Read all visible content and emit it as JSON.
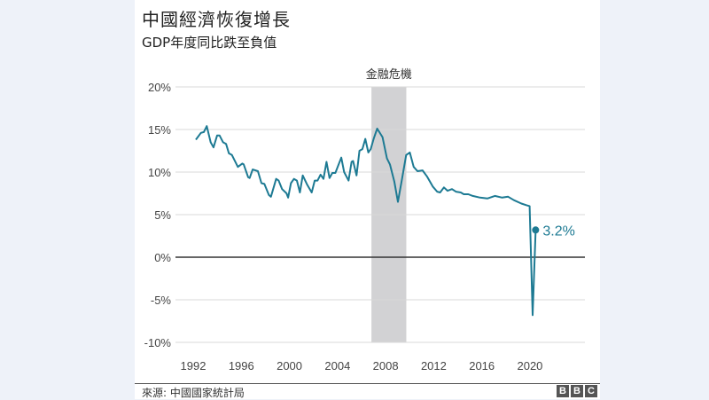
{
  "chart_data": {
    "type": "line",
    "title": "中國經濟恢復增長",
    "subtitle": "GDP年度同比跌至負值",
    "source": "來源:  中國國家統計局",
    "logo": "BBC",
    "ylim": [
      -10,
      20
    ],
    "yticks": [
      20,
      15,
      10,
      5,
      0,
      -5,
      -10
    ],
    "ytick_labels": [
      "20%",
      "15%",
      "10%",
      "5%",
      "0%",
      "-5%",
      "-10%"
    ],
    "xlim": [
      1990.5,
      2024
    ],
    "xticks": [
      1992,
      1996,
      2000,
      2004,
      2008,
      2012,
      2016,
      2020
    ],
    "xtick_labels": [
      "1992",
      "1996",
      "2000",
      "2004",
      "2008",
      "2012",
      "2016",
      "2020"
    ],
    "grid": true,
    "annotation": {
      "label": "金融危機",
      "x_range": [
        2006.6,
        2009.5
      ],
      "color": "#d2d2d4"
    },
    "end_label": "3.2%",
    "line_color": "#1d7a93",
    "series": [
      {
        "x": [
          1992.0,
          1992.42,
          1992.66,
          1992.91,
          1993.23,
          1993.47,
          1993.77,
          1993.97,
          1994.26,
          1994.51,
          1994.75,
          1995.0,
          1995.49,
          1995.86,
          1995.98,
          1996.35,
          1996.47,
          1996.72,
          1997.16,
          1997.45,
          1997.7,
          1998.07,
          1998.24,
          1998.68,
          1998.88,
          1999.17,
          1999.54,
          1999.67,
          1999.91,
          2000.16,
          2000.4,
          2000.65,
          2000.89,
          2001.26,
          2001.63,
          2001.88,
          2002.12,
          2002.37,
          2002.61,
          2002.86,
          2003.11,
          2003.35,
          2003.6,
          2004.09,
          2004.33,
          2004.7,
          2004.95,
          2005.07,
          2005.36,
          2005.6,
          2005.85,
          2006.09,
          2006.34,
          2006.54,
          2006.78,
          2007.08,
          2007.52,
          2007.89,
          2008.14,
          2008.5,
          2008.8,
          2009.12,
          2009.49,
          2009.79,
          2010.11,
          2010.43,
          2010.85,
          2011.21,
          2011.7,
          2012.07,
          2012.31,
          2012.63,
          2012.93,
          2013.3,
          2013.62,
          2014.03,
          2014.28,
          2014.65,
          2015.02,
          2015.63,
          2016.24,
          2016.86,
          2017.47,
          2017.96,
          2018.45,
          2019.07,
          2019.5,
          2019.75,
          2020.0,
          2020.25
        ],
        "values": [
          13.8,
          14.6,
          14.7,
          15.4,
          13.5,
          12.9,
          14.3,
          14.3,
          13.5,
          13.3,
          12.2,
          12.0,
          10.6,
          11.0,
          10.9,
          9.4,
          9.3,
          10.3,
          10.1,
          8.7,
          8.6,
          7.3,
          7.1,
          9.2,
          9.0,
          8.0,
          7.5,
          7.0,
          8.7,
          9.2,
          9.0,
          7.6,
          9.6,
          8.5,
          7.6,
          9.0,
          9.0,
          9.7,
          9.2,
          11.2,
          9.3,
          9.9,
          9.9,
          11.7,
          10.0,
          9.0,
          11.2,
          11.3,
          9.6,
          12.5,
          12.7,
          13.9,
          12.3,
          12.7,
          13.9,
          15.1,
          14.1,
          11.6,
          10.9,
          8.9,
          6.5,
          9.0,
          12.0,
          12.3,
          10.6,
          10.1,
          10.2,
          9.5,
          8.3,
          7.7,
          7.6,
          8.2,
          7.8,
          8.0,
          7.7,
          7.6,
          7.4,
          7.4,
          7.2,
          7.0,
          6.9,
          7.2,
          7.0,
          7.1,
          6.7,
          6.3,
          6.1,
          6.0,
          -6.8,
          3.2
        ]
      }
    ]
  }
}
